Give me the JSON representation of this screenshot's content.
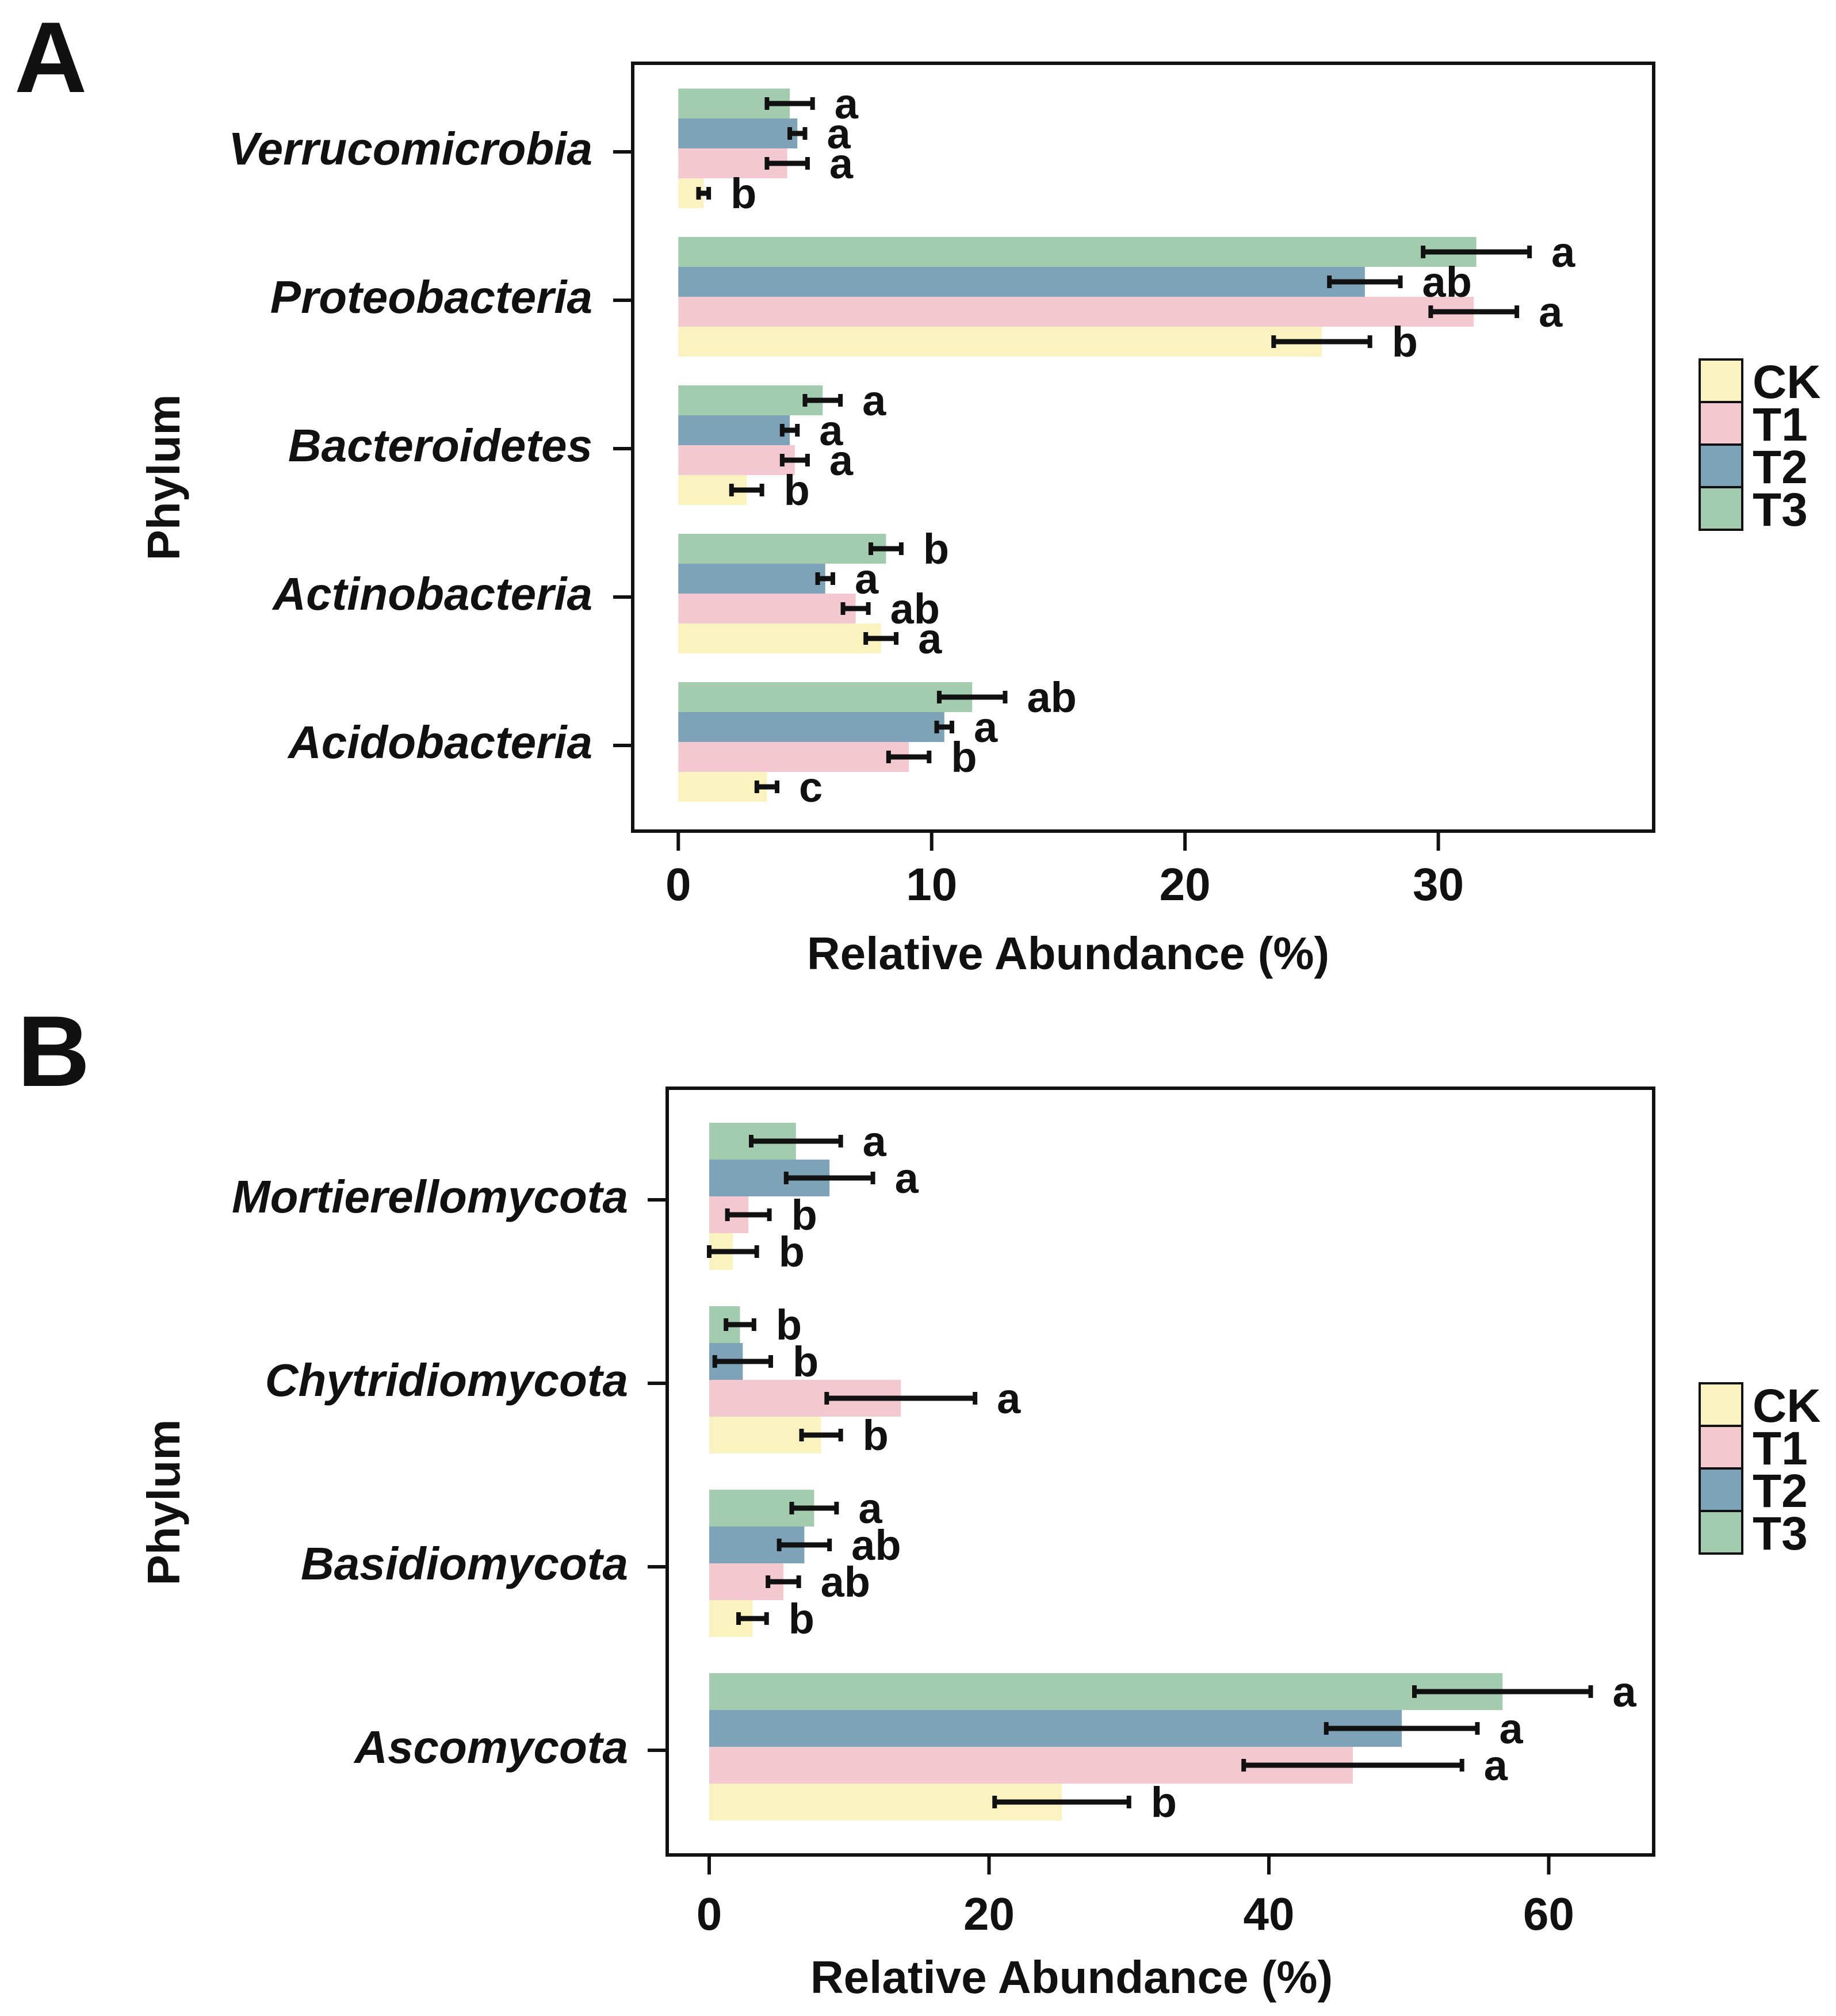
{
  "figure": {
    "legend_title": "",
    "series_colors": {
      "CK": "#FAF3C0",
      "T1": "#F4C8D0",
      "T2": "#7EA2B7",
      "T3": "#A3CCAE"
    }
  },
  "chart_data": [
    {
      "panel": "A",
      "type": "bar",
      "orientation": "horizontal",
      "title": "",
      "xlabel": "Relative Abundance (%)",
      "ylabel": "Phylum",
      "xlim": [
        -1.8,
        38.5
      ],
      "xticks": [
        0,
        10,
        20,
        30
      ],
      "grid": false,
      "legend": "right",
      "categories": [
        "Acidobacteria",
        "Actinobacteria",
        "Bacteroidetes",
        "Proteobacteria",
        "Verrucomicrobia"
      ],
      "series": [
        {
          "name": "CK",
          "values": [
            3.5,
            8.0,
            2.7,
            25.4,
            1.0
          ],
          "errors": [
            0.4,
            0.6,
            0.6,
            1.9,
            0.2
          ],
          "letters": [
            "c",
            "a",
            "b",
            "b",
            "b"
          ]
        },
        {
          "name": "T1",
          "values": [
            9.1,
            7.0,
            4.6,
            31.4,
            4.3
          ],
          "errors": [
            0.8,
            0.5,
            0.5,
            1.7,
            0.8
          ],
          "letters": [
            "b",
            "ab",
            "a",
            "a",
            "a"
          ]
        },
        {
          "name": "T2",
          "values": [
            10.5,
            5.8,
            4.4,
            27.1,
            4.7
          ],
          "errors": [
            0.3,
            0.3,
            0.3,
            1.4,
            0.3
          ],
          "letters": [
            "a",
            "a",
            "a",
            "ab",
            "a"
          ]
        },
        {
          "name": "T3",
          "values": [
            11.6,
            8.2,
            5.7,
            31.5,
            4.4
          ],
          "errors": [
            1.3,
            0.6,
            0.7,
            2.1,
            0.9
          ],
          "letters": [
            "ab",
            "b",
            "a",
            "a",
            "a"
          ]
        }
      ]
    },
    {
      "panel": "B",
      "type": "bar",
      "orientation": "horizontal",
      "title": "",
      "xlabel": "Relative Abundance (%)",
      "ylabel": "Phylum",
      "xlim": [
        -3,
        67.5
      ],
      "xticks": [
        0,
        20,
        40,
        60
      ],
      "grid": false,
      "legend": "right",
      "categories": [
        "Ascomycota",
        "Basidiomycota",
        "Chytridiomycota",
        "Mortierellomycota"
      ],
      "series": [
        {
          "name": "CK",
          "values": [
            25.2,
            3.1,
            8.0,
            1.7
          ],
          "errors": [
            4.8,
            1.0,
            1.4,
            1.7
          ],
          "letters": [
            "b",
            "b",
            "b",
            "b"
          ]
        },
        {
          "name": "T1",
          "values": [
            46.0,
            5.3,
            13.7,
            2.8
          ],
          "errors": [
            7.8,
            1.1,
            5.3,
            1.5
          ],
          "letters": [
            "a",
            "ab",
            "a",
            "b"
          ]
        },
        {
          "name": "T2",
          "values": [
            49.5,
            6.8,
            2.4,
            8.6
          ],
          "errors": [
            5.4,
            1.8,
            2.0,
            3.1
          ],
          "letters": [
            "a",
            "ab",
            "b",
            "a"
          ]
        },
        {
          "name": "T3",
          "values": [
            56.7,
            7.5,
            2.2,
            6.2
          ],
          "errors": [
            6.3,
            1.6,
            1.0,
            3.2
          ],
          "letters": [
            "a",
            "a",
            "b",
            "a"
          ]
        }
      ]
    }
  ]
}
